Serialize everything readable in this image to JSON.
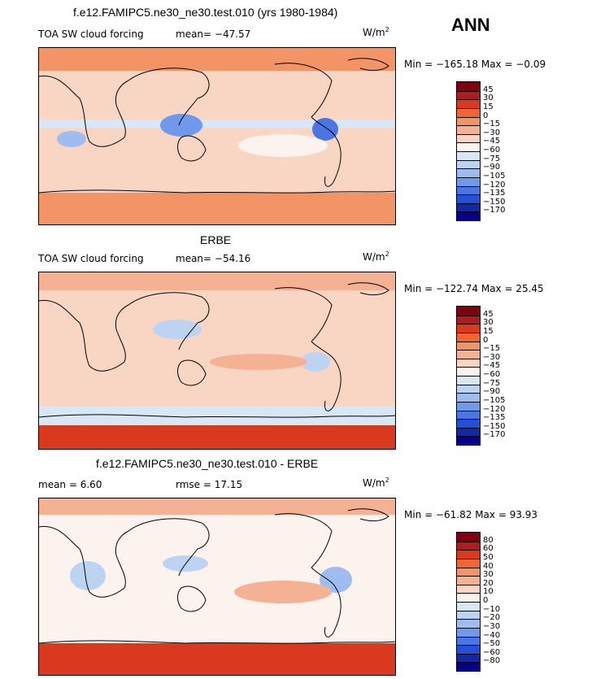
{
  "season": "ANN",
  "colors": {
    "scale_diverging": [
      "#82000e",
      "#b01c1c",
      "#d93a1f",
      "#ef6633",
      "#f29465",
      "#f4b193",
      "#f9d6c4",
      "#fdf3ee",
      "#d7e7f6",
      "#bcd4f2",
      "#9ebcf0",
      "#7099eb",
      "#4a75e3",
      "#254fd6",
      "#1129a8",
      "#04008a"
    ],
    "land_outline": "#000000"
  },
  "panels": [
    {
      "id": "model",
      "title": "f.e12.FAMIPC5.ne30_ne30.test.010 (yrs 1980-1984)",
      "left_label": "TOA SW cloud forcing",
      "stat1": "mean=  −47.57",
      "stat2": "",
      "units_base": "W/m",
      "units_sup": "2",
      "minmax": "Min = −165.18 Max =  −0.09",
      "scale_levels": [
        "45",
        "30",
        "15",
        "0",
        "−15",
        "−30",
        "−45",
        "−60",
        "−75",
        "−90",
        "−105",
        "−120",
        "−135",
        "−150",
        "−170"
      ]
    },
    {
      "id": "obs",
      "title": "ERBE",
      "left_label": "TOA SW cloud forcing",
      "stat1": "mean= −54.16",
      "stat2": "",
      "units_base": "W/m",
      "units_sup": "2",
      "minmax": "Min = −122.74 Max =  25.45",
      "scale_levels": [
        "45",
        "30",
        "15",
        "0",
        "−15",
        "−30",
        "−45",
        "−60",
        "−75",
        "−90",
        "−105",
        "−120",
        "−135",
        "−150",
        "−170"
      ]
    },
    {
      "id": "diff",
      "title": "f.e12.FAMIPC5.ne30_ne30.test.010 - ERBE",
      "left_label": "mean =    6.60",
      "stat1": "rmse =  17.15",
      "stat2": "",
      "units_base": "W/m",
      "units_sup": "2",
      "minmax": "Min = −61.82 Max =  93.93",
      "scale_levels": [
        "80",
        "60",
        "50",
        "40",
        "30",
        "20",
        "10",
        "0",
        "−10",
        "−20",
        "−30",
        "−40",
        "−50",
        "−60",
        "−80"
      ]
    }
  ]
}
